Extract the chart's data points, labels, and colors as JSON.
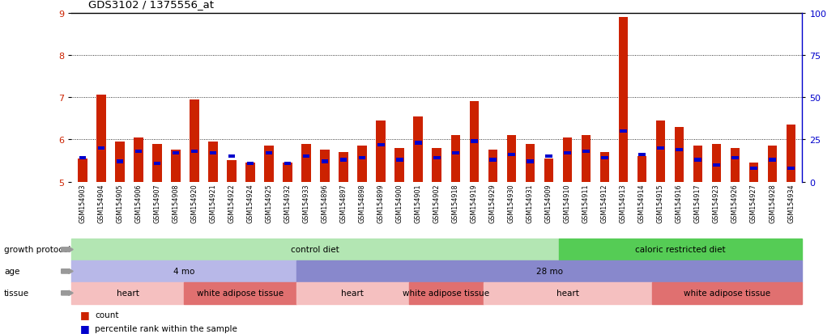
{
  "title": "GDS3102 / 1375556_at",
  "samples": [
    "GSM154903",
    "GSM154904",
    "GSM154905",
    "GSM154906",
    "GSM154907",
    "GSM154908",
    "GSM154920",
    "GSM154921",
    "GSM154922",
    "GSM154924",
    "GSM154925",
    "GSM154932",
    "GSM154933",
    "GSM154896",
    "GSM154897",
    "GSM154898",
    "GSM154899",
    "GSM154900",
    "GSM154901",
    "GSM154902",
    "GSM154918",
    "GSM154919",
    "GSM154929",
    "GSM154930",
    "GSM154931",
    "GSM154909",
    "GSM154910",
    "GSM154911",
    "GSM154912",
    "GSM154913",
    "GSM154914",
    "GSM154915",
    "GSM154916",
    "GSM154917",
    "GSM154923",
    "GSM154926",
    "GSM154927",
    "GSM154928",
    "GSM154934"
  ],
  "red_values": [
    5.55,
    7.05,
    5.95,
    6.05,
    5.9,
    5.75,
    6.95,
    5.95,
    5.5,
    5.45,
    5.85,
    5.45,
    5.9,
    5.75,
    5.7,
    5.85,
    6.45,
    5.8,
    6.55,
    5.8,
    6.1,
    6.9,
    5.75,
    6.1,
    5.9,
    5.55,
    6.05,
    6.1,
    5.7,
    8.9,
    5.6,
    6.45,
    6.3,
    5.85,
    5.9,
    5.8,
    5.45,
    5.85,
    6.35
  ],
  "blue_values": [
    14,
    20,
    12,
    18,
    11,
    17,
    18,
    17,
    15,
    11,
    17,
    11,
    15,
    12,
    13,
    14,
    22,
    13,
    23,
    14,
    17,
    24,
    13,
    16,
    12,
    15,
    17,
    18,
    14,
    30,
    16,
    20,
    19,
    13,
    10,
    14,
    8,
    13,
    8
  ],
  "ylim_left": [
    5,
    9
  ],
  "ylim_right": [
    0,
    100
  ],
  "yticks_left": [
    5,
    6,
    7,
    8,
    9
  ],
  "yticks_right": [
    0,
    25,
    50,
    75,
    100
  ],
  "left_color": "#cc2200",
  "right_color": "#0000cc",
  "gp_bounds": [
    0,
    26,
    39
  ],
  "gp_colors": [
    "#b3e6b3",
    "#55cc55"
  ],
  "gp_labels": [
    "control diet",
    "caloric restricted diet"
  ],
  "age_bounds": [
    0,
    12,
    39
  ],
  "age_colors": [
    "#b8b8e8",
    "#8888cc"
  ],
  "age_labels": [
    "4 mo",
    "28 mo"
  ],
  "tissue_bounds": [
    0,
    6,
    12,
    18,
    22,
    31,
    39
  ],
  "tissue_colors": [
    "#f5c0c0",
    "#e07070",
    "#f5c0c0",
    "#e07070",
    "#f5c0c0",
    "#e07070"
  ],
  "tissue_labels": [
    "heart",
    "white adipose tissue",
    "heart",
    "white adipose tissue",
    "heart",
    "white adipose tissue"
  ],
  "row_labels": [
    "growth protocol",
    "age",
    "tissue"
  ],
  "background_color": "#ffffff"
}
